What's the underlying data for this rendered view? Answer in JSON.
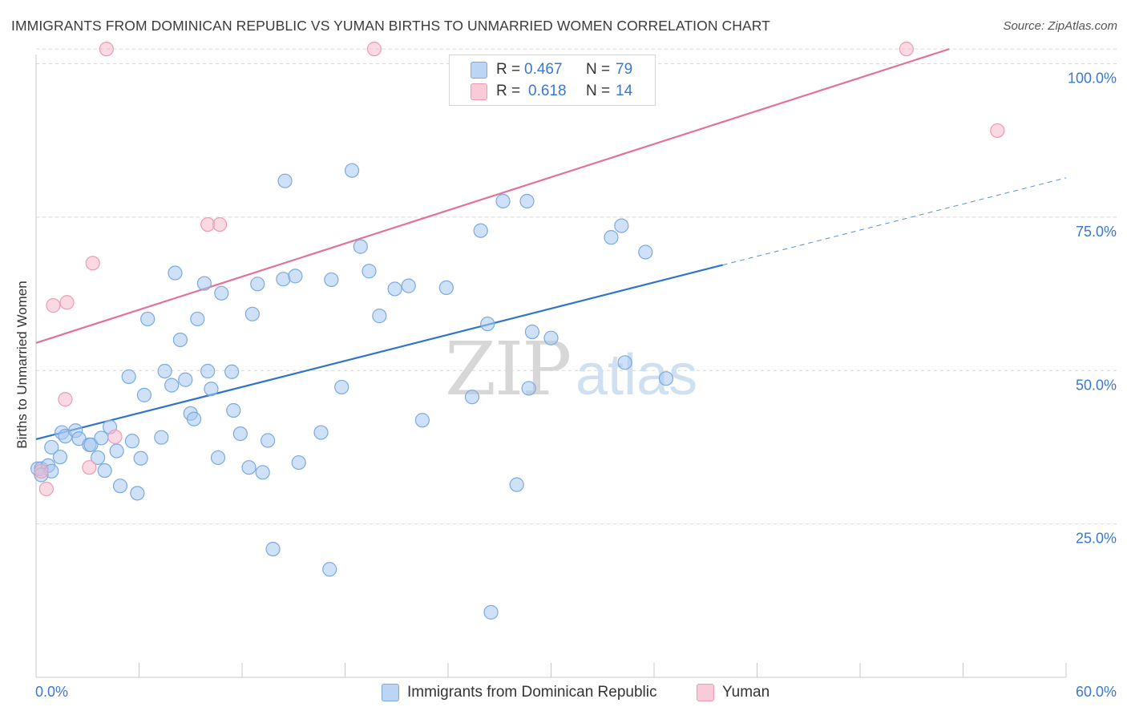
{
  "title": "IMMIGRANTS FROM DOMINICAN REPUBLIC VS YUMAN BIRTHS TO UNMARRIED WOMEN CORRELATION CHART",
  "source": "Source: ZipAtlas.com",
  "watermark": {
    "zip": "ZIP",
    "atlas": "atlas"
  },
  "legend": {
    "rows": [
      {
        "r_label": "R = ",
        "r_value": "0.467",
        "n_label": "N = ",
        "n_value": "79"
      },
      {
        "r_label": "R = ",
        "r_value": "0.618",
        "n_label": "N = ",
        "n_value": "14"
      }
    ]
  },
  "bottom_legend": [
    "Immigrants from Dominican Republic",
    "Yuman"
  ],
  "colors": {
    "blue_fill": "#a8c8f0",
    "blue_stroke": "#7aaae0",
    "blue_line": "#2f74cc",
    "pink_fill": "#f6b9cc",
    "pink_stroke": "#ee9ab4",
    "pink_line": "#e3729b",
    "grid": "#d9d9d9",
    "axis_label": "#3a78d0"
  },
  "chart_data": {
    "type": "scatter",
    "title": "IMMIGRANTS FROM DOMINICAN REPUBLIC VS YUMAN BIRTHS TO UNMARRIED WOMEN CORRELATION CHART",
    "xlabel": "",
    "ylabel": "Births to Unmarried Women",
    "xlim": [
      0,
      60
    ],
    "ylim": [
      0,
      105
    ],
    "x_tick_labels": [
      "0.0%",
      "60.0%"
    ],
    "y_ticks": [
      25,
      50,
      75,
      100
    ],
    "y_tick_labels": [
      "25.0%",
      "50.0%",
      "75.0%",
      "100.0%"
    ],
    "grid": true,
    "legend_position": "top-center",
    "series": [
      {
        "name": "Immigrants from Dominican Republic",
        "color": "#a8c8f0",
        "points": [
          [
            0.1,
            34
          ],
          [
            0.3,
            34
          ],
          [
            0.7,
            34.5
          ],
          [
            0.9,
            33.6
          ],
          [
            0.9,
            37.5
          ],
          [
            1.4,
            35.9
          ],
          [
            1.5,
            39.9
          ],
          [
            1.7,
            39.3
          ],
          [
            2.3,
            40.2
          ],
          [
            2.5,
            38.9
          ],
          [
            3.1,
            37.9
          ],
          [
            3.2,
            37.9
          ],
          [
            3.6,
            35.8
          ],
          [
            3.8,
            39.0
          ],
          [
            4.0,
            33.7
          ],
          [
            4.3,
            40.8
          ],
          [
            4.7,
            36.9
          ],
          [
            4.9,
            31.2
          ],
          [
            5.4,
            49.0
          ],
          [
            5.6,
            38.5
          ],
          [
            5.9,
            30.0
          ],
          [
            6.1,
            35.7
          ],
          [
            6.3,
            46.0
          ],
          [
            6.5,
            58.4
          ],
          [
            7.3,
            39.1
          ],
          [
            7.5,
            49.9
          ],
          [
            7.9,
            47.6
          ],
          [
            8.1,
            65.9
          ],
          [
            8.4,
            55.0
          ],
          [
            8.7,
            48.5
          ],
          [
            9.0,
            43.0
          ],
          [
            9.2,
            42.1
          ],
          [
            9.4,
            58.4
          ],
          [
            9.8,
            64.2
          ],
          [
            10.0,
            49.9
          ],
          [
            10.2,
            47.0
          ],
          [
            10.6,
            35.8
          ],
          [
            10.8,
            62.6
          ],
          [
            11.4,
            49.8
          ],
          [
            11.5,
            43.5
          ],
          [
            11.9,
            39.7
          ],
          [
            12.4,
            34.2
          ],
          [
            12.6,
            59.2
          ],
          [
            12.9,
            64.1
          ],
          [
            13.2,
            33.4
          ],
          [
            13.5,
            38.6
          ],
          [
            13.8,
            20.9
          ],
          [
            14.4,
            64.9
          ],
          [
            14.5,
            80.9
          ],
          [
            15.1,
            65.4
          ],
          [
            15.3,
            35.0
          ],
          [
            16.6,
            39.9
          ],
          [
            17.1,
            17.6
          ],
          [
            17.2,
            64.8
          ],
          [
            17.8,
            47.3
          ],
          [
            18.4,
            82.6
          ],
          [
            18.9,
            70.2
          ],
          [
            19.4,
            66.2
          ],
          [
            20.0,
            58.9
          ],
          [
            20.9,
            63.3
          ],
          [
            21.7,
            63.8
          ],
          [
            22.5,
            41.9
          ],
          [
            23.9,
            63.5
          ],
          [
            25.4,
            45.7
          ],
          [
            25.9,
            72.8
          ],
          [
            26.3,
            57.6
          ],
          [
            26.5,
            10.6
          ],
          [
            27.2,
            77.6
          ],
          [
            28.0,
            31.4
          ],
          [
            28.6,
            77.6
          ],
          [
            28.7,
            47.1
          ],
          [
            28.9,
            56.3
          ],
          [
            30.0,
            55.3
          ],
          [
            33.5,
            71.7
          ],
          [
            34.1,
            73.6
          ],
          [
            34.3,
            51.3
          ],
          [
            35.5,
            69.3
          ],
          [
            36.7,
            48.7
          ],
          [
            0.3,
            33.0
          ]
        ],
        "trend": {
          "x": [
            0,
            40
          ],
          "y": [
            38.8,
            67.2
          ],
          "dashed_extension": {
            "x": [
              40,
              60
            ],
            "y": [
              67.2,
              81.4
            ]
          }
        }
      },
      {
        "name": "Yuman",
        "color": "#f6b9cc",
        "points": [
          [
            0.3,
            33.6
          ],
          [
            0.6,
            30.7
          ],
          [
            1.0,
            60.6
          ],
          [
            1.8,
            61.1
          ],
          [
            1.7,
            45.3
          ],
          [
            3.1,
            34.2
          ],
          [
            3.3,
            67.5
          ],
          [
            4.6,
            39.2
          ],
          [
            4.1,
            102.4
          ],
          [
            10.0,
            73.8
          ],
          [
            10.7,
            73.8
          ],
          [
            19.7,
            102.4
          ],
          [
            50.7,
            102.4
          ],
          [
            56.0,
            89.1
          ]
        ],
        "trend": {
          "x": [
            0,
            53.2
          ],
          "y": [
            54.5,
            102.4
          ]
        }
      }
    ]
  }
}
